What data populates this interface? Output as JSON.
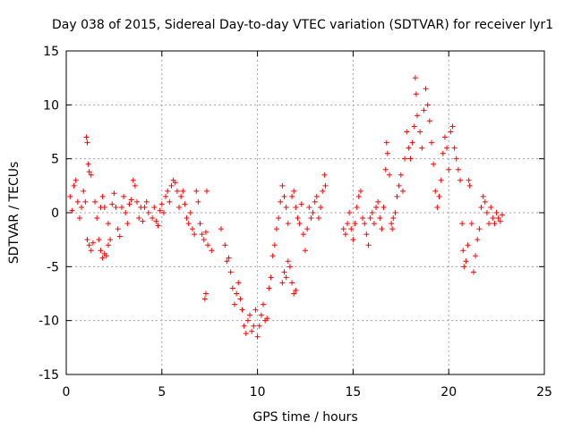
{
  "chart_data": {
    "type": "scatter",
    "title": "Day 038 of 2015, Sidereal Day-to-day VTEC variation (SDTVAR) for receiver lyr1",
    "xlabel": "GPS time / hours",
    "ylabel": "SDTVAR / TECUs",
    "xlim": [
      0,
      25
    ],
    "ylim": [
      -15,
      15
    ],
    "xticks": [
      0,
      5,
      10,
      15,
      20,
      25
    ],
    "yticks": [
      -15,
      -10,
      -5,
      0,
      5,
      10,
      15
    ],
    "grid": true,
    "marker": "+",
    "color": "#ff0000",
    "series": [
      {
        "name": "SDTVAR",
        "points": [
          [
            0.2,
            1.5
          ],
          [
            0.3,
            0.2
          ],
          [
            0.4,
            2.5
          ],
          [
            0.5,
            3.0
          ],
          [
            0.6,
            1.0
          ],
          [
            0.7,
            -0.5
          ],
          [
            0.8,
            0.5
          ],
          [
            0.9,
            2.0
          ],
          [
            1.0,
            1.0
          ],
          [
            1.05,
            7.0
          ],
          [
            1.1,
            6.5
          ],
          [
            1.15,
            4.5
          ],
          [
            1.2,
            3.8
          ],
          [
            1.3,
            3.5
          ],
          [
            1.1,
            -2.5
          ],
          [
            1.2,
            -3.0
          ],
          [
            1.3,
            -3.5
          ],
          [
            1.4,
            -2.8
          ],
          [
            1.5,
            1.0
          ],
          [
            1.6,
            -0.5
          ],
          [
            1.7,
            -2.5
          ],
          [
            1.8,
            -3.5
          ],
          [
            1.9,
            -4.2
          ],
          [
            2.0,
            -3.8
          ],
          [
            2.1,
            -4.0
          ],
          [
            2.2,
            -3.0
          ],
          [
            2.3,
            -2.5
          ],
          [
            1.8,
            0.5
          ],
          [
            1.9,
            1.5
          ],
          [
            2.0,
            0.5
          ],
          [
            2.2,
            -1.0
          ],
          [
            2.4,
            0.8
          ],
          [
            2.5,
            1.8
          ],
          [
            2.6,
            0.5
          ],
          [
            2.7,
            -1.5
          ],
          [
            2.8,
            -2.2
          ],
          [
            2.9,
            0.5
          ],
          [
            3.0,
            1.5
          ],
          [
            3.1,
            0.0
          ],
          [
            3.2,
            -1.0
          ],
          [
            3.3,
            0.8
          ],
          [
            3.4,
            1.2
          ],
          [
            3.5,
            3.0
          ],
          [
            3.6,
            2.5
          ],
          [
            3.7,
            1.0
          ],
          [
            3.8,
            -0.5
          ],
          [
            3.9,
            0.5
          ],
          [
            4.0,
            -0.8
          ],
          [
            4.1,
            0.5
          ],
          [
            4.2,
            1.0
          ],
          [
            4.3,
            0.0
          ],
          [
            4.5,
            -0.5
          ],
          [
            4.6,
            0.5
          ],
          [
            4.7,
            -0.8
          ],
          [
            4.8,
            -1.2
          ],
          [
            4.9,
            0.2
          ],
          [
            5.0,
            0.8
          ],
          [
            5.1,
            0.0
          ],
          [
            5.2,
            1.5
          ],
          [
            5.3,
            2.0
          ],
          [
            5.4,
            1.0
          ],
          [
            5.5,
            2.5
          ],
          [
            5.6,
            3.0
          ],
          [
            5.7,
            2.8
          ],
          [
            5.8,
            2.0
          ],
          [
            5.9,
            0.5
          ],
          [
            6.0,
            1.5
          ],
          [
            6.1,
            2.0
          ],
          [
            6.2,
            0.8
          ],
          [
            6.3,
            -0.5
          ],
          [
            6.4,
            -1.0
          ],
          [
            6.5,
            0.0
          ],
          [
            6.6,
            -1.5
          ],
          [
            6.7,
            -2.0
          ],
          [
            6.8,
            2.0
          ],
          [
            6.9,
            1.0
          ],
          [
            7.0,
            -1.0
          ],
          [
            7.1,
            -2.0
          ],
          [
            7.2,
            -2.5
          ],
          [
            7.3,
            -1.8
          ],
          [
            7.35,
            2.0
          ],
          [
            7.4,
            -3.0
          ],
          [
            7.25,
            -8.0
          ],
          [
            7.3,
            -7.5
          ],
          [
            7.6,
            -3.5
          ],
          [
            8.1,
            -1.5
          ],
          [
            8.3,
            -3.0
          ],
          [
            8.4,
            -4.5
          ],
          [
            8.5,
            -4.2
          ],
          [
            8.6,
            -5.5
          ],
          [
            8.7,
            -7.0
          ],
          [
            8.8,
            -8.5
          ],
          [
            8.9,
            -7.5
          ],
          [
            9.0,
            -6.5
          ],
          [
            9.1,
            -8.0
          ],
          [
            9.2,
            -9.0
          ],
          [
            9.3,
            -10.5
          ],
          [
            9.4,
            -11.2
          ],
          [
            9.5,
            -10.0
          ],
          [
            9.6,
            -9.5
          ],
          [
            9.7,
            -11.0
          ],
          [
            9.8,
            -10.5
          ],
          [
            9.9,
            -9.0
          ],
          [
            10.0,
            -11.5
          ],
          [
            10.1,
            -10.5
          ],
          [
            10.2,
            -9.5
          ],
          [
            10.3,
            -8.5
          ],
          [
            10.4,
            -10.0
          ],
          [
            10.5,
            -9.8
          ],
          [
            10.6,
            -7.0
          ],
          [
            10.7,
            -6.0
          ],
          [
            10.8,
            -4.0
          ],
          [
            10.9,
            -3.0
          ],
          [
            11.0,
            -1.5
          ],
          [
            11.1,
            -0.5
          ],
          [
            11.2,
            1.0
          ],
          [
            11.3,
            2.5
          ],
          [
            11.4,
            1.5
          ],
          [
            11.5,
            0.5
          ],
          [
            11.6,
            -1.0
          ],
          [
            11.3,
            -6.5
          ],
          [
            11.4,
            -5.5
          ],
          [
            11.5,
            -6.0
          ],
          [
            11.6,
            -4.5
          ],
          [
            11.7,
            -5.0
          ],
          [
            11.8,
            -6.5
          ],
          [
            11.9,
            -7.5
          ],
          [
            12.0,
            -7.2
          ],
          [
            11.8,
            1.5
          ],
          [
            11.9,
            2.0
          ],
          [
            12.0,
            0.5
          ],
          [
            12.1,
            -0.5
          ],
          [
            12.2,
            -1.0
          ],
          [
            12.3,
            0.8
          ],
          [
            12.4,
            -2.0
          ],
          [
            12.5,
            -3.5
          ],
          [
            12.6,
            -1.5
          ],
          [
            12.7,
            0.5
          ],
          [
            12.8,
            -0.5
          ],
          [
            12.9,
            0.0
          ],
          [
            13.0,
            1.0
          ],
          [
            13.1,
            1.5
          ],
          [
            13.2,
            -0.5
          ],
          [
            13.3,
            0.5
          ],
          [
            13.4,
            2.0
          ],
          [
            13.5,
            3.5
          ],
          [
            13.55,
            2.5
          ],
          [
            14.5,
            -1.5
          ],
          [
            14.6,
            -2.0
          ],
          [
            14.7,
            -1.0
          ],
          [
            14.8,
            0.0
          ],
          [
            14.9,
            -1.5
          ],
          [
            15.0,
            -2.5
          ],
          [
            15.1,
            -1.0
          ],
          [
            15.2,
            0.5
          ],
          [
            15.3,
            1.5
          ],
          [
            15.4,
            2.0
          ],
          [
            15.5,
            -0.5
          ],
          [
            15.6,
            -1.0
          ],
          [
            15.7,
            -2.0
          ],
          [
            15.8,
            -3.0
          ],
          [
            15.9,
            -0.5
          ],
          [
            16.0,
            0.0
          ],
          [
            16.1,
            -1.0
          ],
          [
            16.2,
            0.5
          ],
          [
            16.3,
            1.0
          ],
          [
            16.4,
            -0.5
          ],
          [
            16.5,
            -1.5
          ],
          [
            16.6,
            0.5
          ],
          [
            16.7,
            4.0
          ],
          [
            16.75,
            6.5
          ],
          [
            16.8,
            5.5
          ],
          [
            16.9,
            3.5
          ],
          [
            17.0,
            -1.0
          ],
          [
            17.05,
            -1.5
          ],
          [
            17.1,
            -0.5
          ],
          [
            17.2,
            0.0
          ],
          [
            17.3,
            1.5
          ],
          [
            17.4,
            2.5
          ],
          [
            17.5,
            3.5
          ],
          [
            17.6,
            2.0
          ],
          [
            17.7,
            5.0
          ],
          [
            17.8,
            7.5
          ],
          [
            17.9,
            6.0
          ],
          [
            18.0,
            5.0
          ],
          [
            18.1,
            6.5
          ],
          [
            18.2,
            8.0
          ],
          [
            18.25,
            12.5
          ],
          [
            18.3,
            11.0
          ],
          [
            18.35,
            9.0
          ],
          [
            18.5,
            7.5
          ],
          [
            18.6,
            6.0
          ],
          [
            18.7,
            9.5
          ],
          [
            18.8,
            11.5
          ],
          [
            18.9,
            10.0
          ],
          [
            19.0,
            8.5
          ],
          [
            19.1,
            6.5
          ],
          [
            19.2,
            4.5
          ],
          [
            19.3,
            2.0
          ],
          [
            19.4,
            0.5
          ],
          [
            19.5,
            1.5
          ],
          [
            19.6,
            3.0
          ],
          [
            19.7,
            5.5
          ],
          [
            19.8,
            7.0
          ],
          [
            19.9,
            6.0
          ],
          [
            20.0,
            4.0
          ],
          [
            20.1,
            7.5
          ],
          [
            20.2,
            8.0
          ],
          [
            20.3,
            6.0
          ],
          [
            20.4,
            5.0
          ],
          [
            20.5,
            4.0
          ],
          [
            20.6,
            3.0
          ],
          [
            20.7,
            -1.0
          ],
          [
            20.75,
            -3.5
          ],
          [
            20.8,
            -5.0
          ],
          [
            20.9,
            -4.5
          ],
          [
            21.0,
            -3.0
          ],
          [
            21.05,
            3.0
          ],
          [
            21.1,
            2.5
          ],
          [
            21.2,
            -1.0
          ],
          [
            21.3,
            -5.5
          ],
          [
            21.4,
            -4.0
          ],
          [
            21.5,
            -2.5
          ],
          [
            21.6,
            -1.5
          ],
          [
            21.7,
            0.5
          ],
          [
            21.8,
            1.5
          ],
          [
            21.9,
            1.0
          ],
          [
            22.0,
            0.0
          ],
          [
            22.1,
            -1.0
          ],
          [
            22.2,
            0.5
          ],
          [
            22.3,
            -0.5
          ],
          [
            22.4,
            -1.0
          ],
          [
            22.5,
            0.0
          ],
          [
            22.6,
            -0.5
          ],
          [
            22.7,
            -0.8
          ],
          [
            22.8,
            -0.2
          ]
        ]
      }
    ]
  }
}
